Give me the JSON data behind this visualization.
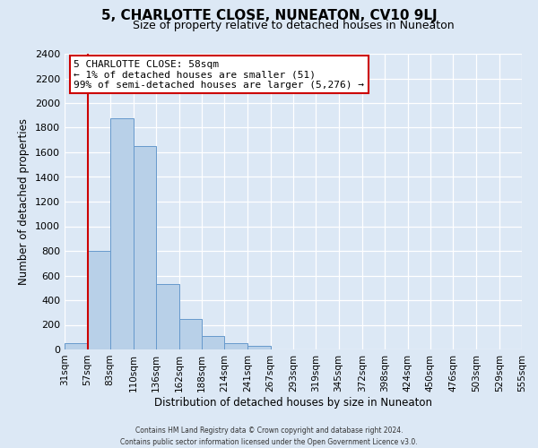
{
  "title": "5, CHARLOTTE CLOSE, NUNEATON, CV10 9LJ",
  "subtitle": "Size of property relative to detached houses in Nuneaton",
  "xlabel": "Distribution of detached houses by size in Nuneaton",
  "ylabel": "Number of detached properties",
  "bin_edges": [
    31,
    57,
    83,
    110,
    136,
    162,
    188,
    214,
    241,
    267,
    293,
    319,
    345,
    372,
    398,
    424,
    450,
    476,
    503,
    529,
    555
  ],
  "bar_heights": [
    50,
    800,
    1880,
    1650,
    530,
    245,
    110,
    50,
    30,
    0,
    0,
    0,
    0,
    0,
    0,
    0,
    0,
    0,
    0,
    0
  ],
  "bar_color": "#b8d0e8",
  "bar_edgecolor": "#6699cc",
  "ylim": [
    0,
    2400
  ],
  "yticks": [
    0,
    200,
    400,
    600,
    800,
    1000,
    1200,
    1400,
    1600,
    1800,
    2000,
    2200,
    2400
  ],
  "property_line_x": 58,
  "property_line_color": "#cc0000",
  "annotation_title": "5 CHARLOTTE CLOSE: 58sqm",
  "annotation_line1": "← 1% of detached houses are smaller (51)",
  "annotation_line2": "99% of semi-detached houses are larger (5,276) →",
  "annotation_box_facecolor": "#ffffff",
  "annotation_box_edgecolor": "#cc0000",
  "footer_line1": "Contains HM Land Registry data © Crown copyright and database right 2024.",
  "footer_line2": "Contains public sector information licensed under the Open Government Licence v3.0.",
  "background_color": "#dce8f5",
  "grid_color": "#ffffff",
  "title_fontsize": 11,
  "subtitle_fontsize": 9,
  "ylabel_fontsize": 8.5,
  "xlabel_fontsize": 8.5,
  "ytick_fontsize": 8,
  "xtick_fontsize": 7.5
}
